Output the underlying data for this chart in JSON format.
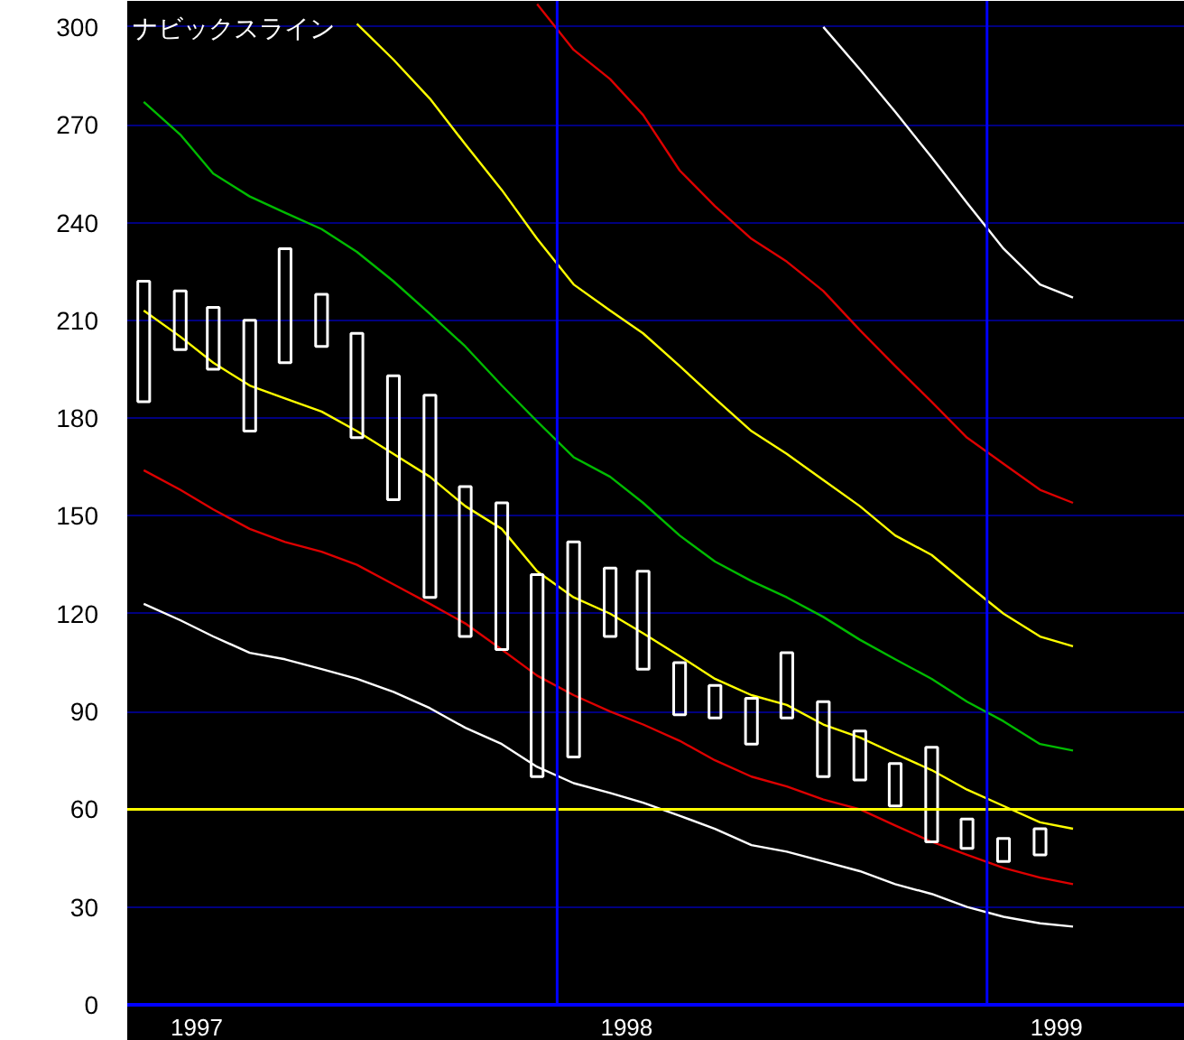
{
  "chart_data": {
    "type": "line",
    "title": "ナビックスライン",
    "x": [
      "1997-01-15",
      "1997-02-15",
      "1997-03-15",
      "1997-04-15",
      "1997-05-15",
      "1997-06-15",
      "1997-07-15",
      "1997-08-15",
      "1997-09-15",
      "1997-10-15",
      "1997-11-15",
      "1997-12-15",
      "1998-01-15",
      "1998-02-15",
      "1998-03-15",
      "1998-04-15",
      "1998-05-15",
      "1998-06-15",
      "1998-07-15",
      "1998-08-15",
      "1998-09-15",
      "1998-10-15",
      "1998-11-15",
      "1998-12-15",
      "1999-01-15",
      "1999-02-15",
      "1999-03-15"
    ],
    "xlim": [
      "1997-01-01",
      "1999-06-18"
    ],
    "xticks": [
      {
        "value": "1997-03",
        "label": "1997"
      },
      {
        "value": "1998-03",
        "label": "1998"
      },
      {
        "value": "1999-03",
        "label": "1999"
      }
    ],
    "ylim": [
      0,
      308
    ],
    "yticks": [
      0,
      30,
      60,
      90,
      120,
      150,
      180,
      210,
      240,
      270,
      300
    ],
    "grid": "y",
    "ref_lines": [
      {
        "axis": "y",
        "value": 60,
        "color": "#ffff00"
      },
      {
        "axis": "x",
        "value": "1998-01",
        "color": "#0000ff"
      },
      {
        "axis": "x",
        "value": "1999-01",
        "color": "#0000ff"
      }
    ],
    "series": [
      {
        "color": "#ffffff",
        "values": [
          123,
          118,
          113,
          108,
          106,
          103,
          100,
          96,
          91,
          85,
          80,
          73,
          68,
          65,
          62,
          58,
          54,
          49,
          47,
          44,
          41,
          37,
          34,
          30,
          27,
          25,
          24
        ]
      },
      {
        "color": "#dd0000",
        "values": [
          164,
          158,
          152,
          146,
          142,
          139,
          135,
          129,
          123,
          117,
          109,
          101,
          95,
          90,
          86,
          81,
          75,
          70,
          67,
          63,
          60,
          55,
          50,
          46,
          42,
          39,
          37
        ]
      },
      {
        "color": "#ffff00",
        "values": [
          213,
          205,
          197,
          190,
          186,
          182,
          176,
          169,
          162,
          153,
          146,
          133,
          125,
          120,
          114,
          107,
          100,
          95,
          92,
          86,
          82,
          77,
          72,
          66,
          61,
          56,
          54
        ]
      },
      {
        "color": "#00bb00",
        "values": [
          277,
          267,
          255,
          248,
          243,
          238,
          231,
          222,
          212,
          202,
          190,
          179,
          168,
          162,
          154,
          144,
          136,
          130,
          125,
          119,
          112,
          106,
          100,
          93,
          87,
          80,
          78
        ]
      },
      {
        "color": "#ffff00",
        "values": [
          null,
          null,
          null,
          null,
          null,
          null,
          301,
          290,
          278,
          264,
          250,
          235,
          221,
          213,
          206,
          196,
          186,
          176,
          169,
          161,
          153,
          144,
          138,
          129,
          120,
          113,
          110
        ]
      },
      {
        "color": "#dd0000",
        "values": [
          null,
          null,
          null,
          null,
          null,
          null,
          null,
          null,
          null,
          null,
          null,
          307,
          293,
          284,
          273,
          256,
          245,
          235,
          228,
          219,
          207,
          196,
          185,
          174,
          166,
          158,
          154
        ]
      },
      {
        "color": "#ffffff",
        "values": [
          null,
          null,
          null,
          null,
          null,
          null,
          null,
          null,
          null,
          null,
          null,
          null,
          null,
          null,
          null,
          null,
          null,
          null,
          null,
          300,
          287,
          274,
          260,
          246,
          232,
          221,
          217
        ]
      },
      {
        "type": "bar",
        "color": "#ffffff",
        "x": [
          "1997-01-15",
          "1997-02-15",
          "1997-03-15",
          "1997-04-15",
          "1997-05-15",
          "1997-06-15",
          "1997-07-15",
          "1997-08-15",
          "1997-09-15",
          "1997-10-15",
          "1997-11-15",
          "1997-12-15",
          "1998-01-15",
          "1998-02-15",
          "1998-03-15",
          "1998-04-15",
          "1998-05-15",
          "1998-06-15",
          "1998-07-15",
          "1998-08-15",
          "1998-09-15",
          "1998-10-15",
          "1998-11-15",
          "1998-12-15",
          "1999-01-15",
          "1999-02-15"
        ],
        "base": [
          185,
          201,
          195,
          176,
          197,
          202,
          174,
          155,
          125,
          113,
          109,
          70,
          76,
          113,
          103,
          89,
          88,
          80,
          88,
          70,
          69,
          61,
          50,
          48,
          44,
          46
        ],
        "values": [
          37,
          18,
          19,
          34,
          35,
          16,
          32,
          38,
          62,
          46,
          45,
          62,
          66,
          21,
          30,
          16,
          10,
          14,
          20,
          23,
          15,
          13,
          29,
          9,
          7,
          8
        ]
      }
    ]
  }
}
